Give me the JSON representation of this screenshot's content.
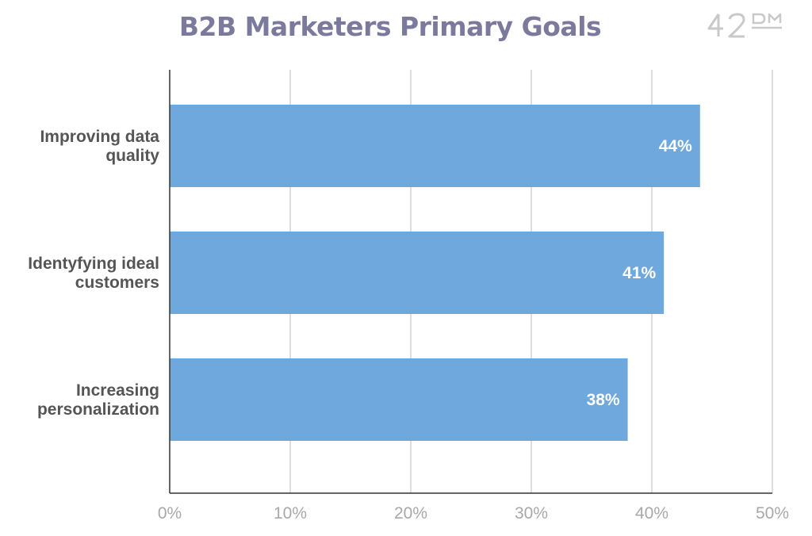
{
  "header": {
    "title": "B2B Marketers Primary Goals",
    "logo_text": "42DM"
  },
  "chart_data": {
    "type": "bar",
    "orientation": "horizontal",
    "title": "B2B Marketers Primary Goals",
    "xlabel": "",
    "ylabel": "",
    "categories": [
      [
        "Improving data",
        "quality"
      ],
      [
        "Identyfying ideal",
        "customers"
      ],
      [
        "Increasing",
        "personalization"
      ]
    ],
    "values": [
      44,
      41,
      38
    ],
    "data_labels": [
      "44%",
      "41%",
      "38%"
    ],
    "xlim": [
      0,
      50
    ],
    "ticks": [
      0,
      10,
      20,
      30,
      40,
      50
    ],
    "tick_labels": [
      "0%",
      "10%",
      "20%",
      "30%",
      "40%",
      "50%"
    ],
    "grid": "vertical",
    "legend": "none",
    "colors": {
      "bar": "#6fa8dc",
      "grid": "#d3d3d3",
      "axis": "#333333",
      "title": "#7b7a9c",
      "category_text": "#555555",
      "tick_text": "#a8a8a8",
      "data_label_text": "#ffffff"
    }
  }
}
